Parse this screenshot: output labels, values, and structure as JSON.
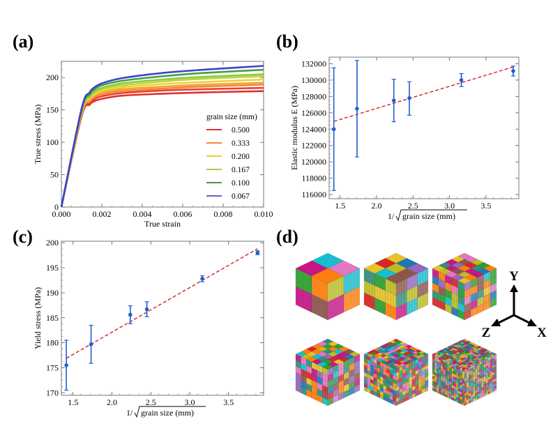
{
  "panels": {
    "a": {
      "label": "(a)"
    },
    "b": {
      "label": "(b)"
    },
    "c": {
      "label": "(c)"
    },
    "d": {
      "label": "(d)"
    }
  },
  "chart_data": [
    {
      "id": "a",
      "type": "line",
      "title": "",
      "xlabel": "True strain",
      "ylabel": "True stress (MPa)",
      "xlim": [
        0,
        0.01
      ],
      "ylim": [
        0,
        225
      ],
      "xticks": [
        0.0,
        0.002,
        0.004,
        0.006,
        0.008,
        0.01
      ],
      "xtick_labels": [
        "0.000",
        "0.002",
        "0.004",
        "0.006",
        "0.008",
        "0.010"
      ],
      "yticks": [
        0,
        50,
        100,
        150,
        200
      ],
      "ytick_labels": [
        "0",
        "50",
        "100",
        "150",
        "200"
      ],
      "legend_title": "grain size (mm)",
      "legend_position": "center-right",
      "series": [
        {
          "name": "0.500",
          "color": "#e03030",
          "x": [
            0,
            0.001,
            0.0014,
            0.0016,
            0.002,
            0.003,
            0.005,
            0.007,
            0.01
          ],
          "values": [
            0,
            140,
            158,
            163,
            167,
            172,
            175,
            177,
            179
          ]
        },
        {
          "name": "0.500",
          "color": "#e84030",
          "x": [
            0,
            0.001,
            0.0014,
            0.0016,
            0.002,
            0.003,
            0.005,
            0.007,
            0.01
          ],
          "values": [
            0,
            141,
            160,
            166,
            171,
            176,
            180,
            182,
            184
          ]
        },
        {
          "name": "0.333",
          "color": "#f08a30",
          "x": [
            0,
            0.001,
            0.0014,
            0.0016,
            0.002,
            0.003,
            0.005,
            0.007,
            0.01
          ],
          "values": [
            0,
            143,
            163,
            169,
            174,
            179,
            183,
            186,
            189
          ]
        },
        {
          "name": "0.333",
          "color": "#f4a040",
          "x": [
            0,
            0.001,
            0.0014,
            0.0016,
            0.002,
            0.003,
            0.005,
            0.007,
            0.01
          ],
          "values": [
            0,
            144,
            165,
            171,
            177,
            182,
            186,
            189,
            192
          ]
        },
        {
          "name": "0.200",
          "color": "#f0d030",
          "x": [
            0,
            0.001,
            0.0014,
            0.0016,
            0.002,
            0.003,
            0.005,
            0.007,
            0.01
          ],
          "values": [
            0,
            146,
            167,
            173,
            179,
            185,
            190,
            193,
            197
          ]
        },
        {
          "name": "0.167",
          "color": "#b8d840",
          "x": [
            0,
            0.001,
            0.0014,
            0.0016,
            0.002,
            0.003,
            0.005,
            0.007,
            0.01
          ],
          "values": [
            0,
            147,
            169,
            176,
            182,
            188,
            194,
            198,
            202
          ]
        },
        {
          "name": "0.167",
          "color": "#90c840",
          "x": [
            0,
            0.001,
            0.0014,
            0.0016,
            0.002,
            0.003,
            0.005,
            0.007,
            0.01
          ],
          "values": [
            0,
            148,
            171,
            178,
            184,
            191,
            197,
            201,
            205
          ]
        },
        {
          "name": "0.100",
          "color": "#40a040",
          "x": [
            0,
            0.001,
            0.0014,
            0.0016,
            0.002,
            0.003,
            0.005,
            0.007,
            0.01
          ],
          "values": [
            0,
            150,
            174,
            181,
            188,
            195,
            202,
            207,
            212
          ]
        },
        {
          "name": "0.067",
          "color": "#4040d0",
          "x": [
            0,
            0.001,
            0.0014,
            0.0016,
            0.002,
            0.003,
            0.005,
            0.007,
            0.01
          ],
          "values": [
            0,
            152,
            177,
            184,
            191,
            199,
            207,
            212,
            218
          ]
        }
      ],
      "legend_entries": [
        {
          "name": "0.500",
          "color": "#e03030"
        },
        {
          "name": "0.333",
          "color": "#f08a30"
        },
        {
          "name": "0.200",
          "color": "#f0d030"
        },
        {
          "name": "0.167",
          "color": "#a8d040"
        },
        {
          "name": "0.100",
          "color": "#40a040"
        },
        {
          "name": "0.067",
          "color": "#6060e0"
        }
      ]
    },
    {
      "id": "b",
      "type": "scatter",
      "title": "",
      "xlabel": "1/√grain size (mm)",
      "xlabel_prefix": "1/",
      "xlabel_radicand": "grain size (mm)",
      "ylabel": "Elastic modulus E (MPa)",
      "xlim": [
        1.35,
        3.95
      ],
      "ylim": [
        115500,
        132800
      ],
      "xticks": [
        1.5,
        2.0,
        2.5,
        3.0,
        3.5
      ],
      "xtick_labels": [
        "1.5",
        "2.0",
        "2.5",
        "3.0",
        "3.5"
      ],
      "yticks": [
        116000,
        118000,
        120000,
        122000,
        124000,
        126000,
        128000,
        130000,
        132000
      ],
      "ytick_labels": [
        "116000",
        "118000",
        "120000",
        "122000",
        "124000",
        "126000",
        "128000",
        "130000",
        "132000"
      ],
      "x": [
        1.414,
        1.732,
        2.236,
        2.449,
        3.162,
        3.873
      ],
      "values": [
        124000,
        126500,
        127500,
        127800,
        130000,
        131100
      ],
      "err_low": [
        7500,
        5900,
        2600,
        2100,
        800,
        600
      ],
      "err_high": [
        7500,
        5900,
        2600,
        2000,
        800,
        600
      ],
      "fit_line": {
        "x": [
          1.414,
          3.873
        ],
        "values": [
          124950,
          131600
        ],
        "style": "dashed",
        "color": "#d42020"
      },
      "point_color": "#1f5fd0"
    },
    {
      "id": "c",
      "type": "scatter",
      "title": "",
      "xlabel": "1/√grain size (mm)",
      "xlabel_prefix": "1/",
      "xlabel_radicand": "grain size (mm)",
      "ylabel": "Yield stress (MPa)",
      "xlim": [
        1.35,
        3.95
      ],
      "ylim": [
        169.5,
        200.3
      ],
      "xticks": [
        1.5,
        2.0,
        2.5,
        3.0,
        3.5
      ],
      "xtick_labels": [
        "1.5",
        "2.0",
        "2.5",
        "3.0",
        "3.5"
      ],
      "yticks": [
        170,
        175,
        180,
        185,
        190,
        195,
        200
      ],
      "ytick_labels": [
        "170",
        "175",
        "180",
        "185",
        "190",
        "195",
        "200"
      ],
      "x": [
        1.414,
        1.732,
        2.236,
        2.449,
        3.162,
        3.873
      ],
      "values": [
        175.5,
        179.7,
        185.6,
        186.7,
        192.8,
        198.0
      ],
      "err_low": [
        5.0,
        3.8,
        1.8,
        1.5,
        0.6,
        0.4
      ],
      "err_high": [
        5.0,
        3.8,
        1.8,
        1.5,
        0.6,
        0.4
      ],
      "fit_line": {
        "x": [
          1.414,
          3.873
        ],
        "values": [
          176.9,
          198.8
        ],
        "style": "dashed",
        "color": "#d42020"
      },
      "point_color": "#1f5fd0"
    }
  ],
  "cubes": {
    "items": [
      {
        "name": "cube-1",
        "divisions": 2,
        "seed": 3
      },
      {
        "name": "cube-2",
        "divisions": 3,
        "seed": 11
      },
      {
        "name": "cube-3",
        "divisions": 5,
        "seed": 17
      },
      {
        "name": "cube-4",
        "divisions": 6,
        "seed": 23
      },
      {
        "name": "cube-5",
        "divisions": 10,
        "seed": 31
      },
      {
        "name": "cube-6",
        "divisions": 15,
        "seed": 41
      }
    ],
    "palette": [
      "#1f77b4",
      "#d62728",
      "#2ca02c",
      "#bcbd22",
      "#ff7f0e",
      "#17becf",
      "#9467bd",
      "#8c564b",
      "#e377c2",
      "#e6c229",
      "#2f8f7a",
      "#c71585"
    ],
    "axes": {
      "y": "Y",
      "x": "X",
      "z": "Z"
    }
  }
}
